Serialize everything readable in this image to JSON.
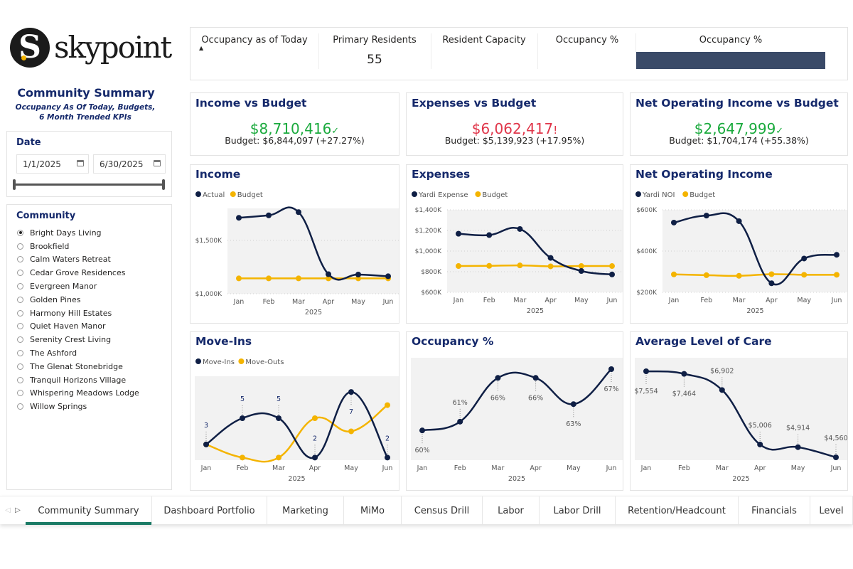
{
  "brand": {
    "name": "skypoint",
    "logo_letter": "S"
  },
  "sidebar": {
    "title": "Community Summary",
    "subtitle": "Occupancy As Of Today, Budgets, 6 Month Trended KPIs",
    "date": {
      "label": "Date",
      "start": "1/1/2025",
      "end": "6/30/2025",
      "range_fraction": [
        0,
        1
      ]
    },
    "community": {
      "label": "Community",
      "selected": "Bright Days Living",
      "items": [
        "Bright Days Living",
        "Brookfield",
        "Calm Waters Retreat",
        "Cedar Grove Residences",
        "Evergreen Manor",
        "Golden Pines",
        "Harmony Hill Estates",
        "Quiet Haven Manor",
        "Serenity Crest Living",
        "The Ashford",
        "The Glenat Stonebridge",
        "Tranquil Horizons Village",
        "Whispering Meadows Lodge",
        "Willow Springs"
      ]
    }
  },
  "kpi_bar": {
    "occupancy_today": {
      "label": "Occupancy as of Today",
      "sort_icon": "triangle-up"
    },
    "primary_residents": {
      "label": "Primary Residents",
      "value": "55"
    },
    "resident_capacity": {
      "label": "Resident Capacity",
      "value": ""
    },
    "occupancy_pct": {
      "label": "Occupancy %",
      "value": ""
    },
    "occupancy_bar": {
      "label": "Occupancy %",
      "color": "#3a4a68"
    }
  },
  "kpi_cards": [
    {
      "title": "Income vs Budget",
      "value": "$8,710,416",
      "indicator": "✓",
      "status": "good",
      "budget": "Budget: $6,844,097 (+27.27%)"
    },
    {
      "title": "Expenses vs Budget",
      "value": "$6,062,417",
      "indicator": "!",
      "status": "bad",
      "budget": "Budget: $5,139,923 (+17.95%)"
    },
    {
      "title": "Net Operating Income vs Budget",
      "value": "$2,647,999",
      "indicator": "✓",
      "status": "good",
      "budget": "Budget: $1,704,174 (+55.38%)"
    }
  ],
  "colors": {
    "primary": "#0f1f45",
    "secondary": "#f4b400",
    "title": "#15296b",
    "good": "#1aaa3d",
    "bad": "#e0364a",
    "plot_bg": "#f2f2f2",
    "active_tab": "#1a7a65"
  },
  "chart_data": [
    {
      "id": "income",
      "type": "line",
      "title": "Income",
      "categories": [
        "Jan",
        "Feb",
        "Mar",
        "Apr",
        "May",
        "Jun"
      ],
      "xlabel": "2025",
      "ylim": [
        1000,
        1800
      ],
      "yticks": [
        {
          "v": 1000,
          "label": "$1,000K"
        },
        {
          "v": 1500,
          "label": "$1,500K"
        }
      ],
      "unit": "$K",
      "series": [
        {
          "name": "Actual",
          "values": [
            1712,
            1735,
            1765,
            1183,
            1180,
            1164
          ]
        },
        {
          "name": "Budget",
          "values": [
            1144,
            1144,
            1144,
            1144,
            1144,
            1144
          ]
        }
      ]
    },
    {
      "id": "expenses",
      "type": "line",
      "title": "Expenses",
      "categories": [
        "Jan",
        "Feb",
        "Mar",
        "Apr",
        "May",
        "Jun"
      ],
      "xlabel": "2025",
      "ylim": [
        600,
        1400
      ],
      "yticks": [
        {
          "v": 600,
          "label": "$600K"
        },
        {
          "v": 800,
          "label": "$800K"
        },
        {
          "v": 1000,
          "label": "$1,000K"
        },
        {
          "v": 1200,
          "label": "$1,200K"
        },
        {
          "v": 1400,
          "label": "$1,400K"
        }
      ],
      "unit": "$K",
      "series": [
        {
          "name": "Yardi Expense",
          "values": [
            1168,
            1155,
            1214,
            934,
            807,
            773
          ]
        },
        {
          "name": "Budget",
          "values": [
            855,
            857,
            861,
            852,
            855,
            855
          ]
        }
      ]
    },
    {
      "id": "noi",
      "type": "line",
      "title": "Net Operating Income",
      "categories": [
        "Jan",
        "Feb",
        "Mar",
        "Apr",
        "May",
        "Jun"
      ],
      "xlabel": "2025",
      "ylim": [
        200,
        600
      ],
      "yticks": [
        {
          "v": 200,
          "label": "$200K"
        },
        {
          "v": 400,
          "label": "$400K"
        },
        {
          "v": 600,
          "label": "$600K"
        }
      ],
      "unit": "$K",
      "series": [
        {
          "name": "Yardi NOI",
          "values": [
            538,
            572,
            545,
            244,
            364,
            382
          ]
        },
        {
          "name": "Budget",
          "values": [
            287,
            283,
            280,
            288,
            285,
            285
          ]
        }
      ]
    },
    {
      "id": "moveins",
      "type": "line",
      "title": "Move-Ins",
      "categories": [
        "Jan",
        "Feb",
        "Mar",
        "Apr",
        "May",
        "Jun"
      ],
      "xlabel": "2025",
      "ylim": [
        1.8,
        8.2
      ],
      "yticks": [],
      "series": [
        {
          "name": "Move-Ins",
          "values": [
            3,
            5,
            5,
            2,
            7,
            2
          ],
          "data_labels": [
            "3",
            "5",
            "5",
            "2",
            "7",
            "2"
          ]
        },
        {
          "name": "Move-Outs",
          "values": [
            3,
            2,
            2,
            5,
            4,
            6
          ]
        }
      ]
    },
    {
      "id": "occupancy",
      "type": "line",
      "title": "Occupancy %",
      "categories": [
        "Jan",
        "Feb",
        "Mar",
        "Apr",
        "May",
        "Jun"
      ],
      "xlabel": "2025",
      "ylim": [
        56.6,
        68.3
      ],
      "yticks": [],
      "series": [
        {
          "values": [
            60,
            61,
            66,
            66,
            63,
            67
          ],
          "data_labels": [
            "60%",
            "61%",
            "66%",
            "66%",
            "63%",
            "67%"
          ]
        }
      ]
    },
    {
      "id": "care",
      "type": "line",
      "title": "Average Level of Care",
      "categories": [
        "Jan",
        "Feb",
        "Mar",
        "Apr",
        "May",
        "Jun"
      ],
      "xlabel": "2025",
      "ylim": [
        4461,
        8024
      ],
      "yticks": [],
      "series": [
        {
          "values": [
            7554,
            7464,
            6902,
            5006,
            4914,
            4560
          ],
          "data_labels": [
            "$7,554",
            "$7,464",
            "$6,902",
            "$5,006",
            "$4,914",
            "$4,560"
          ]
        }
      ]
    }
  ],
  "tabs": {
    "nav_prev": "◁",
    "nav_next": "▷",
    "items": [
      "Community Summary",
      "Dashboard Portfolio",
      "Marketing",
      "MiMo",
      "Census Drill",
      "Labor",
      "Labor Drill",
      "Retention/Headcount",
      "Financials",
      "Level"
    ],
    "active": 0
  }
}
